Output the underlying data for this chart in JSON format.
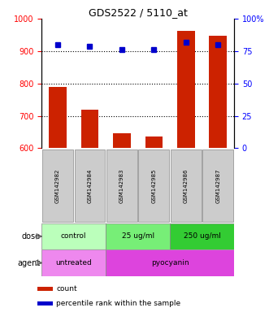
{
  "title": "GDS2522 / 5110_at",
  "samples": [
    "GSM142982",
    "GSM142984",
    "GSM142983",
    "GSM142985",
    "GSM142986",
    "GSM142987"
  ],
  "counts": [
    790,
    720,
    645,
    635,
    963,
    948
  ],
  "percentile_ranks": [
    80,
    79,
    76,
    76,
    82,
    80
  ],
  "ylim_left": [
    600,
    1000
  ],
  "ylim_right": [
    0,
    100
  ],
  "yticks_left": [
    600,
    700,
    800,
    900,
    1000
  ],
  "yticks_right": [
    0,
    25,
    50,
    75,
    100
  ],
  "ytick_right_labels": [
    "0",
    "25",
    "50",
    "75",
    "100%"
  ],
  "bar_color": "#cc2200",
  "dot_color": "#0000cc",
  "dose_colors": [
    "#bbffbb",
    "#77ee77",
    "#33cc33"
  ],
  "dose_texts": [
    "control",
    "25 ug/ml",
    "250 ug/ml"
  ],
  "dose_ranges": [
    [
      0,
      2
    ],
    [
      2,
      4
    ],
    [
      4,
      6
    ]
  ],
  "agent_colors": [
    "#ee88ee",
    "#dd44dd"
  ],
  "agent_texts": [
    "untreated",
    "pyocyanin"
  ],
  "agent_ranges": [
    [
      0,
      2
    ],
    [
      2,
      6
    ]
  ],
  "sample_bg": "#cccccc",
  "sample_edge": "#888888",
  "row_label_fontsize": 7,
  "tick_fontsize": 7,
  "title_fontsize": 9,
  "legend_fontsize": 6.5,
  "bar_fontsize": 5
}
